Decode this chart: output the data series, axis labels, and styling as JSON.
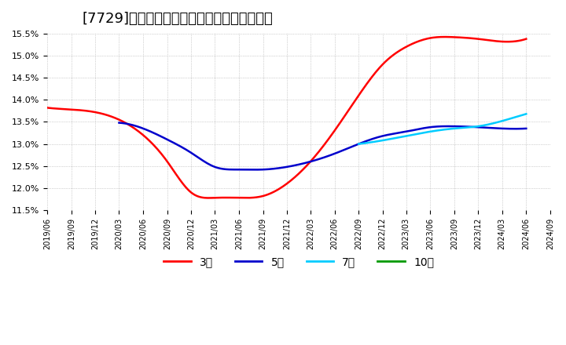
{
  "title": "[7729]　当期純利益マージンの平均値の推移",
  "title_fontsize": 13,
  "background_color": "#ffffff",
  "plot_background_color": "#ffffff",
  "grid_color": "#aaaaaa",
  "ylim": [
    11.5,
    15.5
  ],
  "yticks": [
    11.5,
    12.0,
    12.5,
    13.0,
    13.5,
    14.0,
    14.5,
    15.0,
    15.5
  ],
  "series": {
    "3year": {
      "label": "3年",
      "color": "#ff0000",
      "dates": [
        "2019-06",
        "2019-09",
        "2019-12",
        "2020-03",
        "2020-06",
        "2020-09",
        "2020-12",
        "2021-03",
        "2021-06",
        "2021-09",
        "2021-12",
        "2022-03",
        "2022-06",
        "2022-09",
        "2022-12",
        "2023-03",
        "2023-06",
        "2023-09",
        "2023-12",
        "2024-03",
        "2024-06"
      ],
      "values": [
        13.82,
        13.78,
        13.72,
        13.55,
        13.2,
        12.6,
        11.9,
        11.78,
        11.78,
        11.82,
        12.1,
        12.6,
        13.3,
        14.1,
        14.8,
        15.2,
        15.4,
        15.42,
        15.38,
        15.32,
        15.38
      ]
    },
    "5year": {
      "label": "5年",
      "color": "#0000cc",
      "dates": [
        "2019-06",
        "2019-09",
        "2019-12",
        "2020-03",
        "2020-06",
        "2020-09",
        "2020-12",
        "2021-03",
        "2021-06",
        "2021-09",
        "2021-12",
        "2022-03",
        "2022-06",
        "2022-09",
        "2022-12",
        "2023-03",
        "2023-06",
        "2023-09",
        "2023-12",
        "2024-03",
        "2024-06"
      ],
      "values": [
        null,
        null,
        null,
        13.48,
        13.35,
        13.1,
        12.8,
        12.48,
        12.42,
        12.42,
        12.48,
        12.6,
        12.78,
        13.0,
        13.18,
        13.28,
        13.38,
        13.4,
        13.38,
        13.35,
        13.35
      ]
    },
    "7year": {
      "label": "7年",
      "color": "#00ccff",
      "dates": [
        "2021-06",
        "2021-09",
        "2021-12",
        "2022-03",
        "2022-06",
        "2022-09",
        "2022-12",
        "2023-03",
        "2023-06",
        "2023-09",
        "2023-12",
        "2024-03",
        "2024-06"
      ],
      "values": [
        null,
        null,
        null,
        null,
        null,
        13.0,
        13.08,
        13.18,
        13.28,
        13.35,
        13.4,
        13.52,
        13.68
      ]
    },
    "10year": {
      "label": "10年",
      "color": "#009900",
      "dates": [],
      "values": []
    }
  },
  "legend_entries": [
    "3年",
    "5年",
    "7年",
    "10年"
  ],
  "legend_colors": [
    "#ff0000",
    "#0000cc",
    "#00ccff",
    "#009900"
  ],
  "xtick_dates": [
    "2019/06",
    "2019/09",
    "2019/12",
    "2020/03",
    "2020/06",
    "2020/09",
    "2020/12",
    "2021/03",
    "2021/06",
    "2021/09",
    "2021/12",
    "2022/03",
    "2022/06",
    "2022/09",
    "2022/12",
    "2023/03",
    "2023/06",
    "2023/09",
    "2023/12",
    "2024/03",
    "2024/06",
    "2024/09"
  ]
}
